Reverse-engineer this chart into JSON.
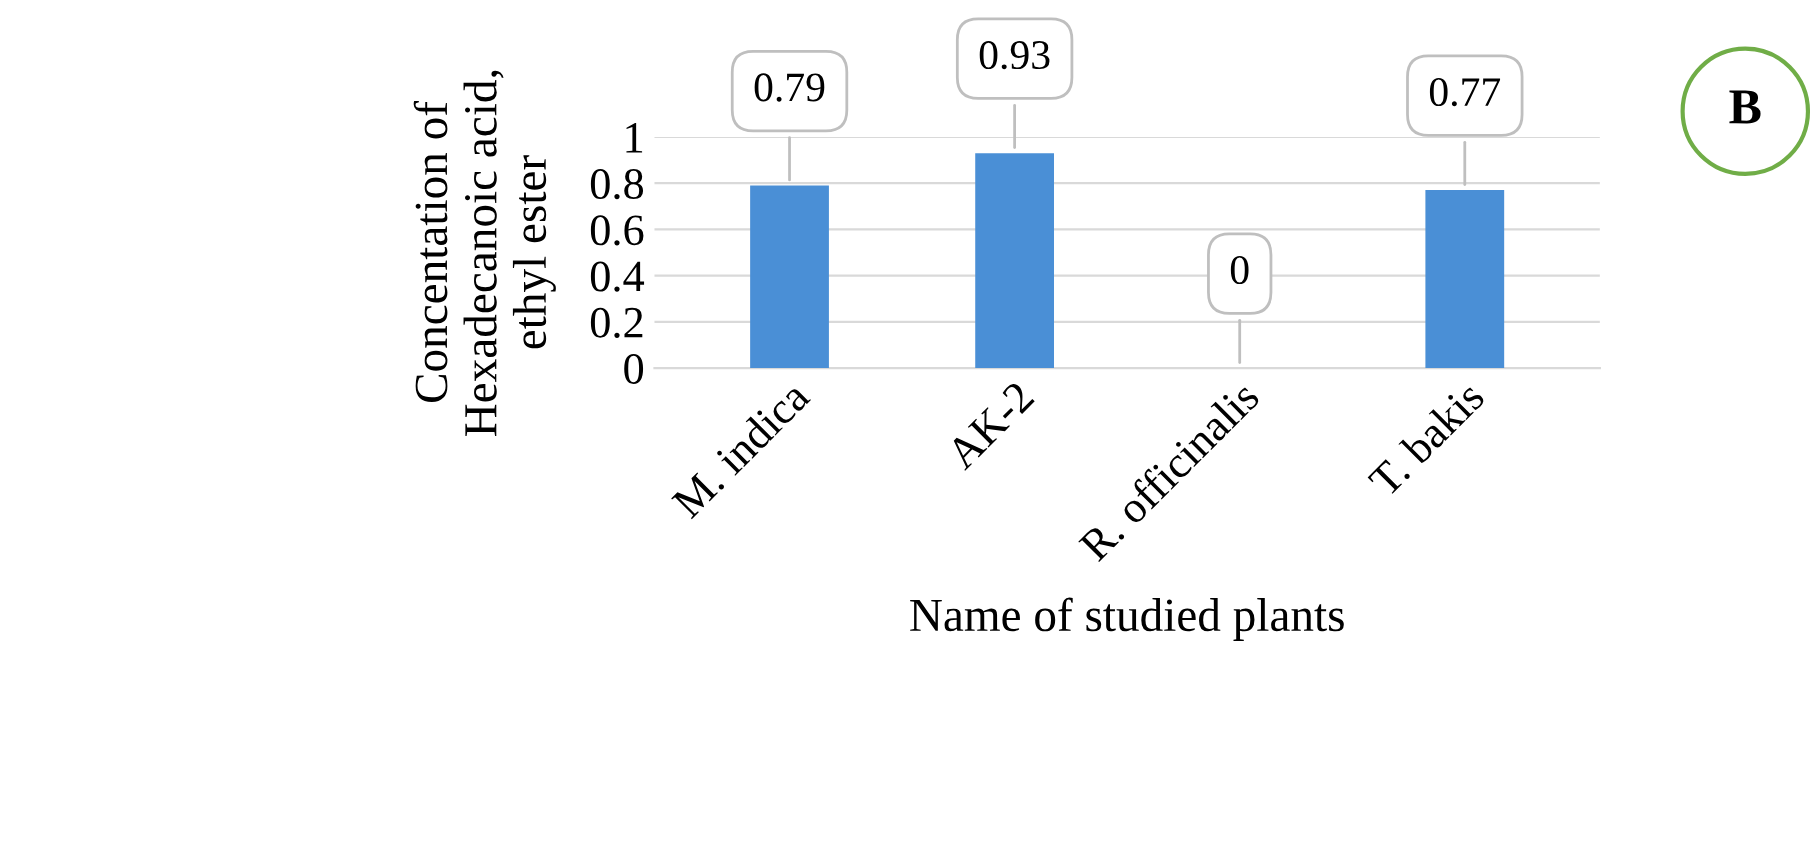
{
  "chart_data": {
    "type": "bar",
    "categories": [
      "M. indica",
      "AK-2",
      "R. officinalis",
      "T. bakis"
    ],
    "values": [
      0.79,
      0.93,
      0,
      0.77
    ],
    "color": "#4a8fd6",
    "ylim": [
      0,
      1
    ],
    "yticks": [
      0,
      0.2,
      0.4,
      0.6,
      0.8,
      1
    ],
    "grid": "y",
    "data_labels": true,
    "legend": false,
    "xlabel": "Name of studied plants",
    "ylabel": "Concentation of\nHexadecanoic acid,\nethyl ester",
    "annotations": [
      "B"
    ]
  }
}
